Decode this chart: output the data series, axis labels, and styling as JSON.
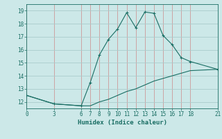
{
  "xlabel": "Humidex (Indice chaleur)",
  "background_color": "#cce8e8",
  "grid_color_major": "#aacccc",
  "grid_color_minor": "#ffaaaa",
  "line_color": "#1a6e64",
  "xlim": [
    0,
    21
  ],
  "ylim": [
    11.5,
    19.5
  ],
  "xticks": [
    0,
    3,
    6,
    7,
    8,
    9,
    10,
    11,
    12,
    13,
    14,
    15,
    16,
    17,
    18,
    21
  ],
  "yticks": [
    12,
    13,
    14,
    15,
    16,
    17,
    18,
    19
  ],
  "line1_x": [
    0,
    3,
    6,
    7,
    8,
    9,
    10,
    11,
    12,
    13,
    14,
    15,
    16,
    17,
    18,
    21
  ],
  "line1_y": [
    12.5,
    11.85,
    11.7,
    13.5,
    15.6,
    16.8,
    17.6,
    18.85,
    17.7,
    18.9,
    18.8,
    17.1,
    16.4,
    15.4,
    15.1,
    14.5
  ],
  "line2_x": [
    0,
    3,
    6,
    7,
    8,
    9,
    10,
    11,
    12,
    13,
    14,
    15,
    16,
    17,
    18,
    21
  ],
  "line2_y": [
    12.5,
    11.85,
    11.7,
    11.7,
    12.0,
    12.2,
    12.5,
    12.8,
    13.0,
    13.3,
    13.6,
    13.8,
    14.0,
    14.2,
    14.4,
    14.5
  ],
  "marker": "+",
  "markersize": 3,
  "linewidth": 0.8
}
